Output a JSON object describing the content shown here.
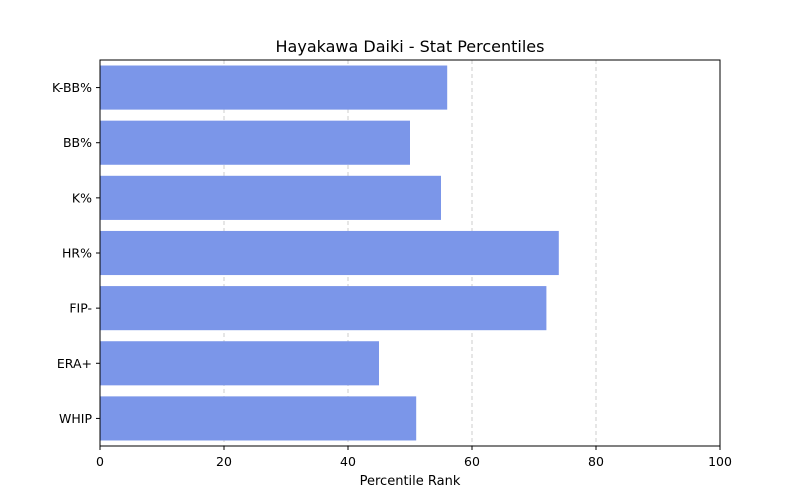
{
  "chart_data": {
    "type": "bar",
    "orientation": "horizontal",
    "title": "Hayakawa Daiki - Stat Percentiles",
    "xlabel": "Percentile Rank",
    "ylabel": "",
    "xlim": [
      0,
      100
    ],
    "xticks": [
      0,
      20,
      40,
      60,
      80,
      100
    ],
    "grid": "x-dashed",
    "bar_color": "#7b96e9",
    "categories": [
      "K-BB%",
      "BB%",
      "K%",
      "HR%",
      "FIP-",
      "ERA+",
      "WHIP"
    ],
    "values": [
      56,
      50,
      55,
      74,
      72,
      45,
      51
    ]
  }
}
